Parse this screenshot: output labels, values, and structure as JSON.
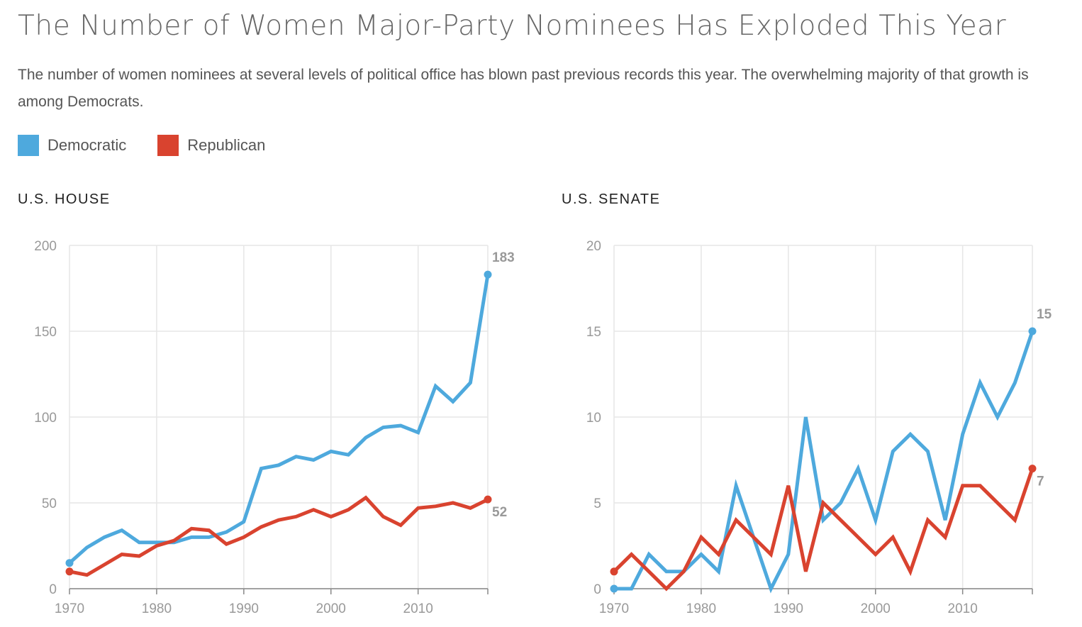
{
  "title": "The Number of Women Major-Party Nominees Has Exploded This Year",
  "subtitle": "The number of women nominees at several levels of political office has blown past previous records this year. The overwhelming majority of that growth is among Democrats.",
  "legend": [
    {
      "label": "Democratic",
      "color": "#4ea9dd"
    },
    {
      "label": "Republican",
      "color": "#d9432f"
    }
  ],
  "chart_data": [
    {
      "type": "line",
      "title": "U.S. HOUSE",
      "x": [
        1970,
        1972,
        1974,
        1976,
        1978,
        1980,
        1982,
        1984,
        1986,
        1988,
        1990,
        1992,
        1994,
        1996,
        1998,
        2000,
        2002,
        2004,
        2006,
        2008,
        2010,
        2012,
        2014,
        2016,
        2018
      ],
      "xticks": [
        "1970",
        "1980",
        "1990",
        "2000",
        "2010"
      ],
      "ylim": [
        0,
        200
      ],
      "yticks": [
        "0",
        "50",
        "100",
        "150",
        "200"
      ],
      "grid": true,
      "series": [
        {
          "name": "Democratic",
          "color": "#4ea9dd",
          "values": [
            15,
            24,
            30,
            34,
            27,
            27,
            27,
            30,
            30,
            33,
            39,
            70,
            72,
            77,
            75,
            80,
            78,
            88,
            94,
            95,
            91,
            118,
            109,
            120,
            183
          ],
          "end_label": "183"
        },
        {
          "name": "Republican",
          "color": "#d9432f",
          "values": [
            10,
            8,
            14,
            20,
            19,
            25,
            28,
            35,
            34,
            26,
            30,
            36,
            40,
            42,
            46,
            42,
            46,
            53,
            42,
            37,
            47,
            48,
            50,
            47,
            52
          ],
          "end_label": "52"
        }
      ]
    },
    {
      "type": "line",
      "title": "U.S. SENATE",
      "x": [
        1970,
        1972,
        1974,
        1976,
        1978,
        1980,
        1982,
        1984,
        1986,
        1988,
        1990,
        1992,
        1994,
        1996,
        1998,
        2000,
        2002,
        2004,
        2006,
        2008,
        2010,
        2012,
        2014,
        2016,
        2018
      ],
      "xticks": [
        "1970",
        "1980",
        "1990",
        "2000",
        "2010"
      ],
      "ylim": [
        0,
        20
      ],
      "yticks": [
        "0",
        "5",
        "10",
        "15",
        "20"
      ],
      "grid": true,
      "series": [
        {
          "name": "Democratic",
          "color": "#4ea9dd",
          "values": [
            0,
            0,
            2,
            1,
            1,
            2,
            1,
            6,
            3,
            0,
            2,
            10,
            4,
            5,
            7,
            4,
            8,
            9,
            8,
            4,
            9,
            12,
            10,
            12,
            15
          ],
          "end_label": "15"
        },
        {
          "name": "Republican",
          "color": "#d9432f",
          "values": [
            1,
            2,
            1,
            0,
            1,
            3,
            2,
            4,
            3,
            2,
            6,
            1,
            5,
            4,
            3,
            2,
            3,
            1,
            4,
            3,
            6,
            6,
            5,
            4,
            7
          ],
          "end_label": "7"
        }
      ]
    }
  ]
}
